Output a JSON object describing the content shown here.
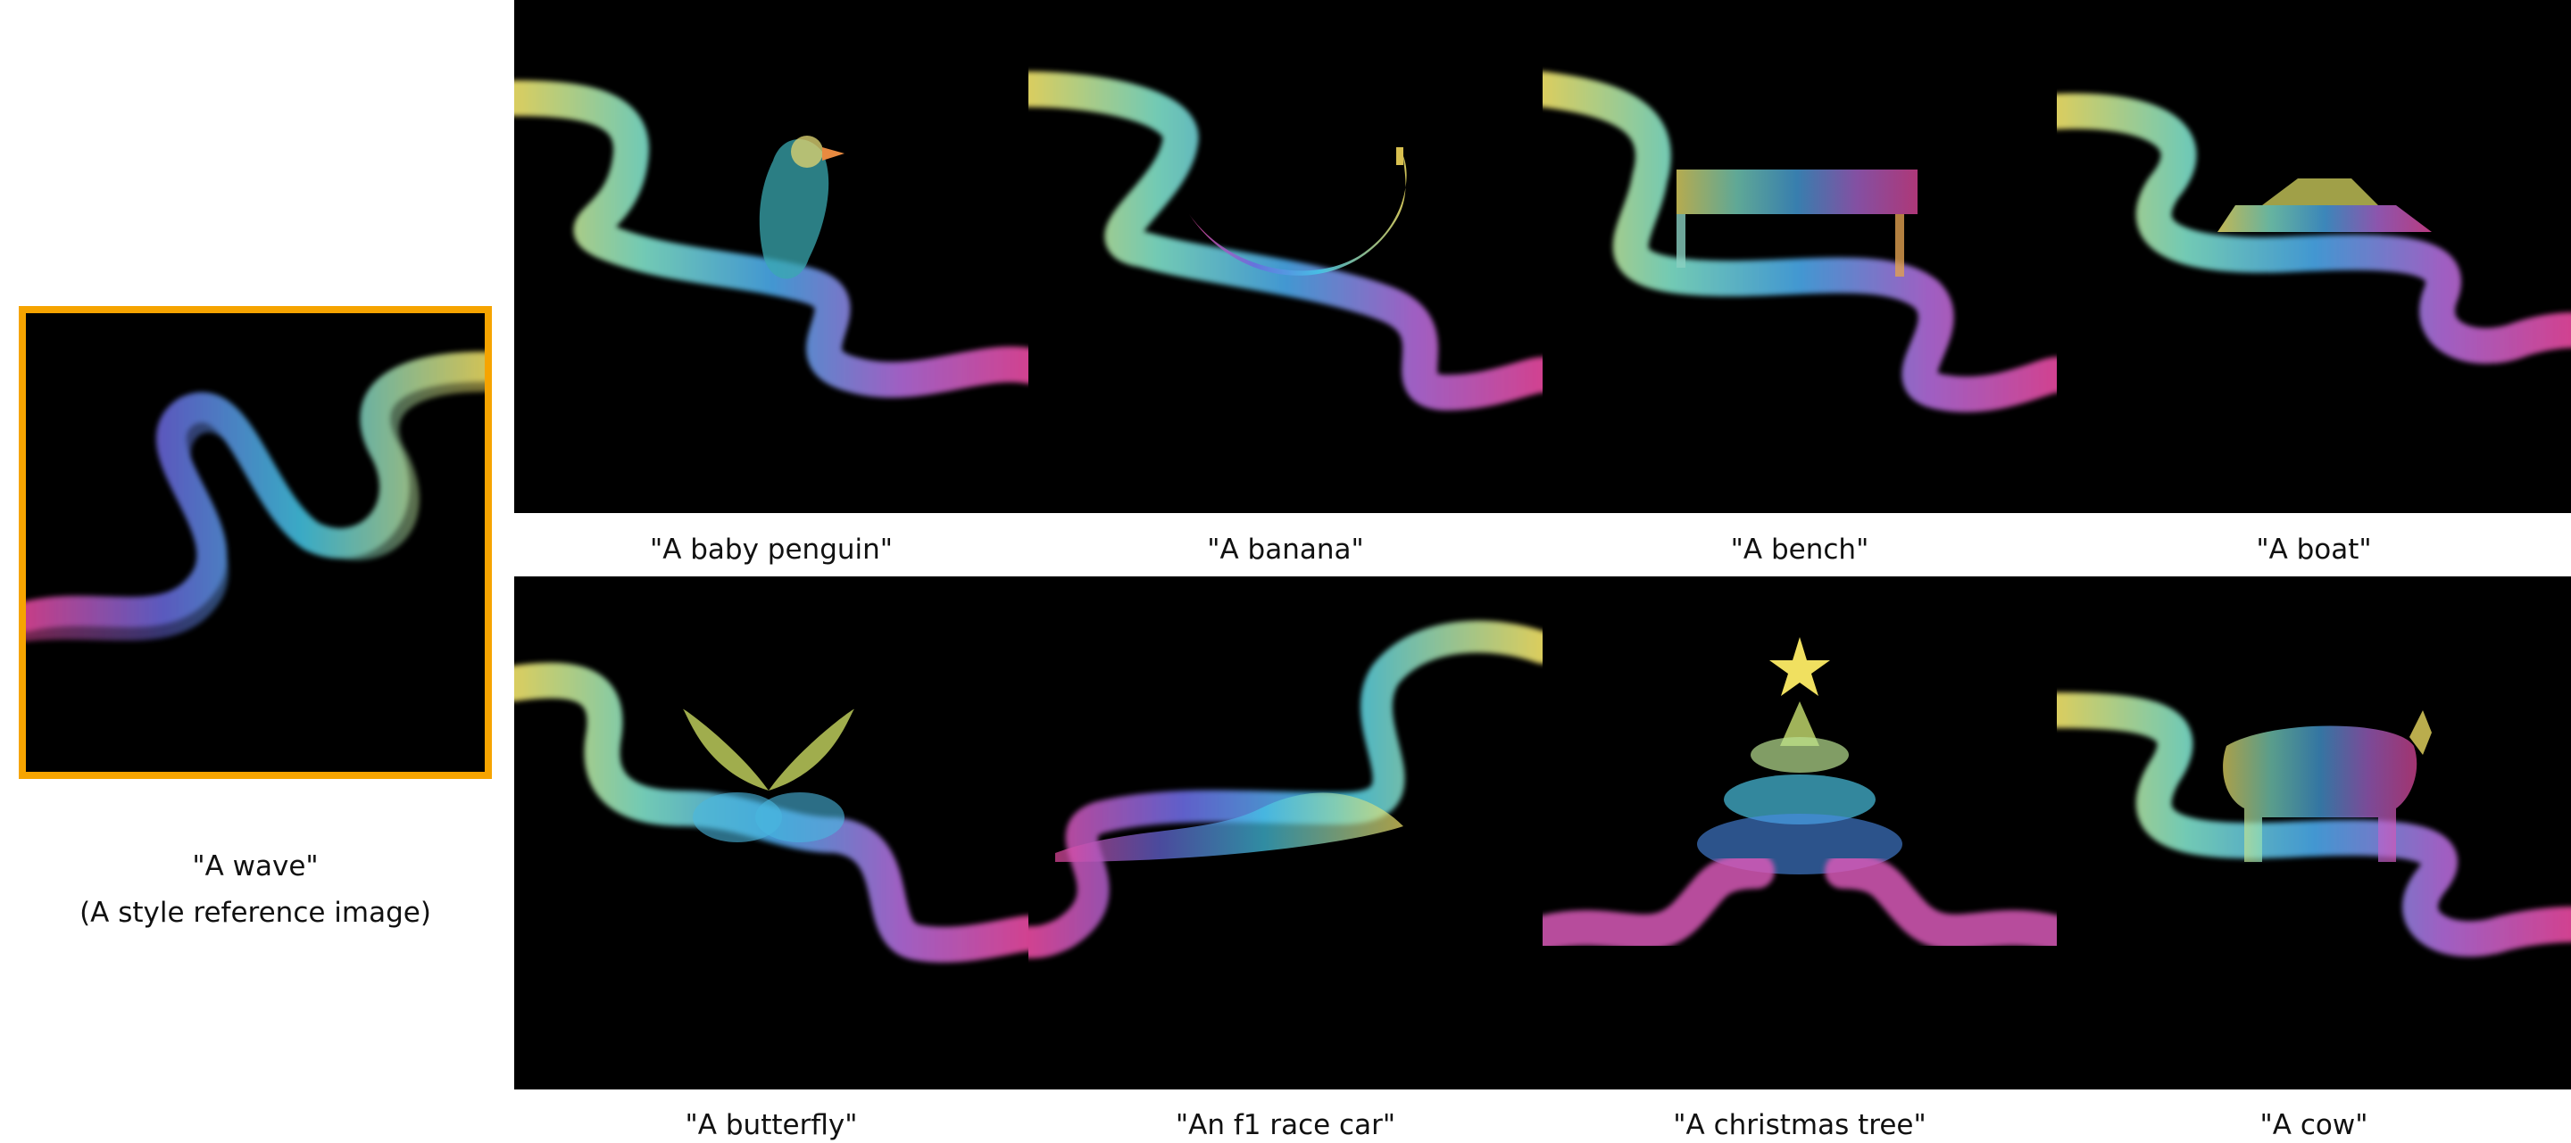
{
  "reference": {
    "line1": "\"A wave\"",
    "line2": "(A style reference image)",
    "border_color": "#f6a400"
  },
  "grid": [
    {
      "caption": "\"A baby penguin\"",
      "subject": "penguin"
    },
    {
      "caption": "\"A banana\"",
      "subject": "banana"
    },
    {
      "caption": "\"A bench\"",
      "subject": "bench"
    },
    {
      "caption": "\"A boat\"",
      "subject": "boat"
    },
    {
      "caption": "\"A butterfly\"",
      "subject": "butterfly"
    },
    {
      "caption": "\"An f1 race car\"",
      "subject": "race-car"
    },
    {
      "caption": "\"A christmas tree\"",
      "subject": "christmas-tree"
    },
    {
      "caption": "\"A cow\"",
      "subject": "cow"
    }
  ]
}
